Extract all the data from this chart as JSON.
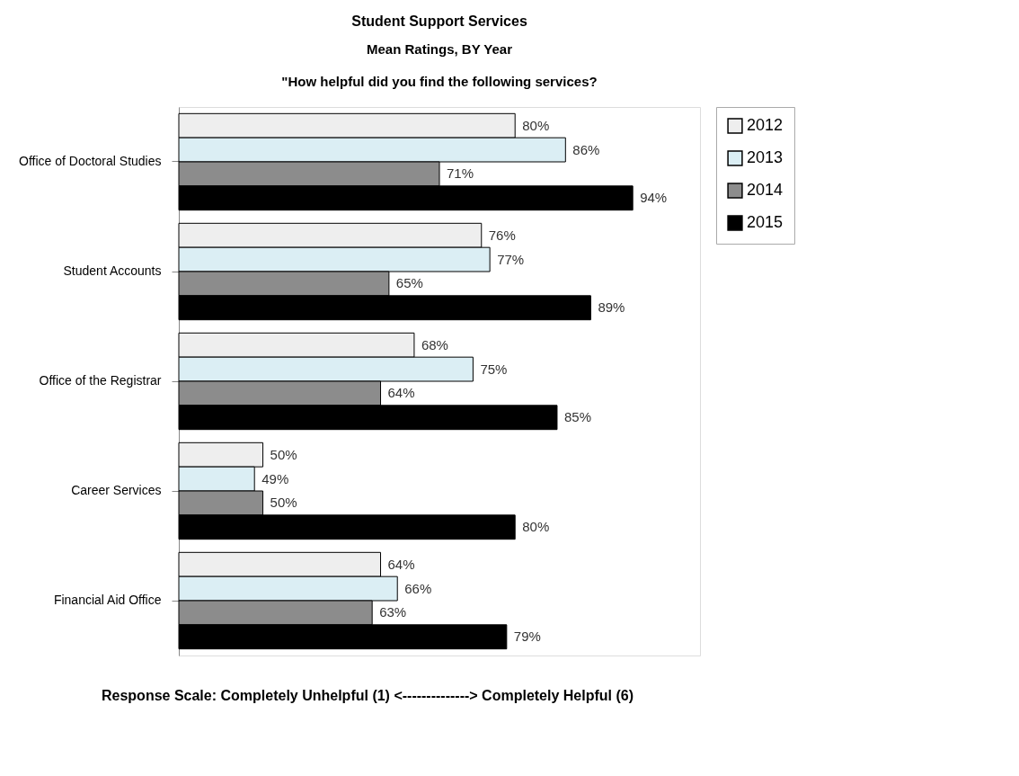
{
  "chart_data": {
    "type": "bar",
    "orientation": "horizontal",
    "title": "Student Support Services",
    "subtitle": "Mean Ratings, BY Year",
    "categories": [
      "Office of Doctoral Studies",
      "Student Accounts",
      "Office of the Registrar",
      "Career Services",
      "Financial Aid Office"
    ],
    "series": [
      {
        "name": "2012",
        "color": "#eeeeee",
        "values": [
          80,
          76,
          68,
          50,
          64
        ],
        "value_labels": [
          "80%",
          "76%",
          "68%",
          "50%",
          "64%"
        ]
      },
      {
        "name": "2013",
        "color": "#dbeef4",
        "values": [
          86,
          77,
          75,
          49,
          66
        ],
        "value_labels": [
          "86%",
          "77%",
          "75%",
          "49%",
          "66%"
        ]
      },
      {
        "name": "2014",
        "color": "#8c8c8c",
        "values": [
          71,
          65,
          64,
          50,
          63
        ],
        "value_labels": [
          "71%",
          "65%",
          "64%",
          "50%",
          "63%"
        ]
      },
      {
        "name": "2015",
        "color": "#000000",
        "values": [
          94,
          89,
          85,
          80,
          79
        ],
        "value_labels": [
          "94%",
          "89%",
          "85%",
          "80%",
          "79%"
        ]
      }
    ],
    "xlim": [
      40,
      102
    ],
    "legend": "right",
    "annotations": [
      "\"How helpful did you find the following services?",
      "Response Scale:   Completely Unhelpful  (1)   <-------------->   Completely Helpful  (6)"
    ]
  }
}
